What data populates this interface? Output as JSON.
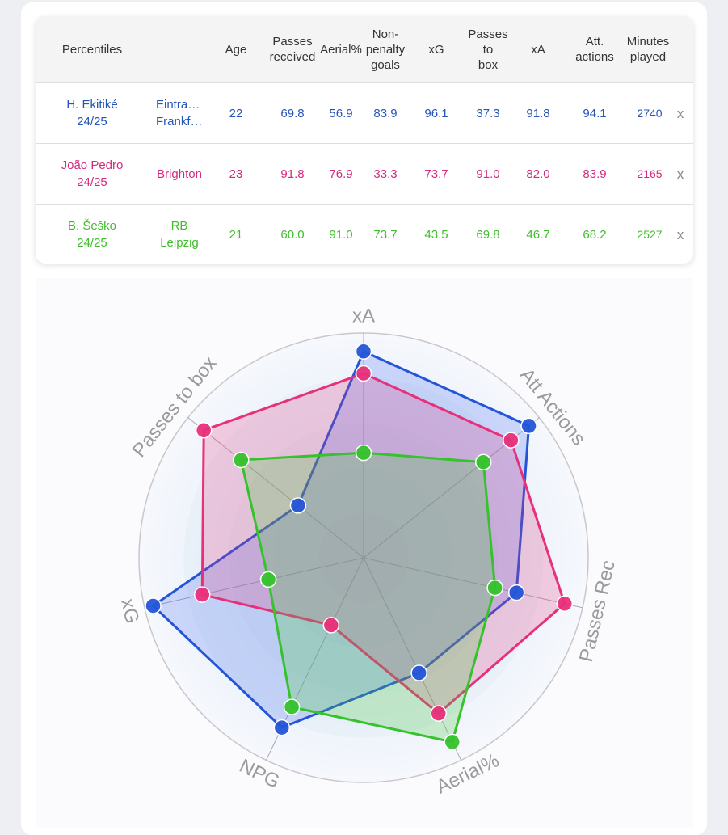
{
  "table": {
    "headers": {
      "percentiles": "Percentiles",
      "age": "Age",
      "passes_received": "Passes\nreceived",
      "aerial": "Aerial%",
      "npg": "Non-\npenalty\ngoals",
      "xg": "xG",
      "passes_box": "Passes\nto\nbox",
      "xa": "xA",
      "att_actions": "Att.\nactions",
      "minutes": "Minutes\nplayed"
    },
    "remove_label": "x",
    "rows": [
      {
        "player": "H. Ekitiké\n24/25",
        "team_line1": "Eintracht",
        "team_line2": "Frankfurt",
        "age": "22",
        "passes_received": "69.8",
        "aerial": "56.9",
        "npg": "83.9",
        "xg": "96.1",
        "passes_box": "37.3",
        "xa": "91.8",
        "att_actions": "94.1",
        "minutes": "2740",
        "color": "#2455b8"
      },
      {
        "player": "João Pedro\n24/25",
        "team_line1": "Brighton",
        "team_line2": "",
        "age": "23",
        "passes_received": "91.8",
        "aerial": "76.9",
        "npg": "33.3",
        "xg": "73.7",
        "passes_box": "91.0",
        "xa": "82.0",
        "att_actions": "83.9",
        "minutes": "2165",
        "color": "#d42a7e"
      },
      {
        "player": "B. Šeško\n24/25",
        "team_line1": "RB",
        "team_line2": "Leipzig",
        "age": "21",
        "passes_received": "60.0",
        "aerial": "91.0",
        "npg": "73.7",
        "xg": "43.5",
        "passes_box": "69.8",
        "xa": "46.7",
        "att_actions": "68.2",
        "minutes": "2527",
        "color": "#3fbe2a"
      }
    ]
  },
  "chart_data": {
    "type": "radar",
    "axes": [
      "xA",
      "Att Actions",
      "Passes Rec",
      "Aerial%",
      "NPG",
      "xG",
      "Passes to box"
    ],
    "range": [
      0,
      100
    ],
    "series": [
      {
        "name": "H. Ekitiké 24/25",
        "values": [
          91.8,
          94.1,
          69.8,
          56.9,
          83.9,
          96.1,
          37.3
        ],
        "color": "#2455d8",
        "fill": "rgba(60,100,240,0.22)"
      },
      {
        "name": "João Pedro 24/25",
        "values": [
          82.0,
          83.9,
          91.8,
          76.9,
          33.3,
          73.7,
          91.0
        ],
        "color": "#e8307a",
        "fill": "rgba(232,48,122,0.22)"
      },
      {
        "name": "B. Šeško 24/25",
        "values": [
          46.7,
          68.2,
          60.0,
          91.0,
          73.7,
          43.5,
          69.8
        ],
        "color": "#36c22c",
        "fill": "rgba(70,200,60,0.25)"
      }
    ]
  }
}
